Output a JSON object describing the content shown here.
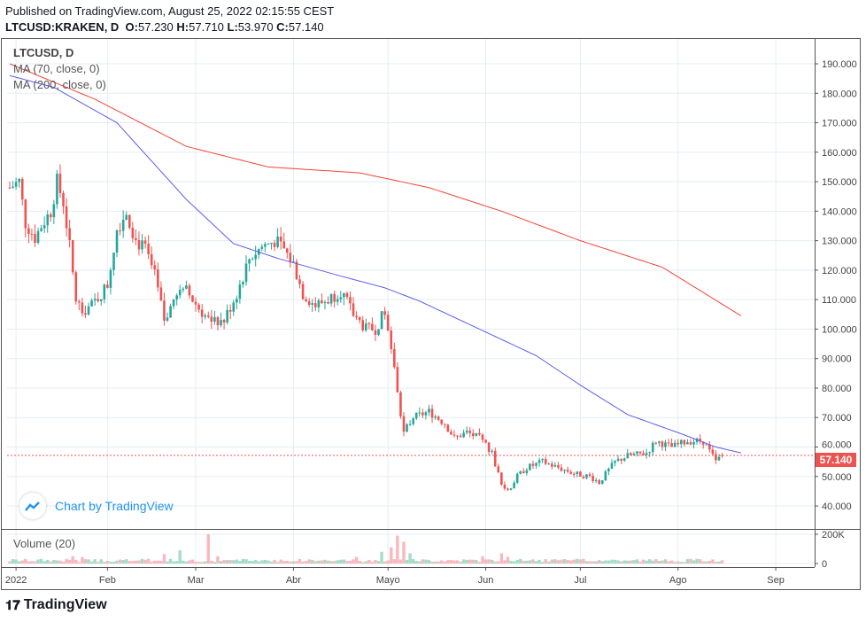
{
  "header": {
    "published": "Published on TradingView.com, August 25, 2022 02:15:55 CEST",
    "symbol": "LTCUSD:KRAKEN, D",
    "o_label": "O:",
    "o": "57.230",
    "h_label": "H:",
    "h": "57.710",
    "l_label": "L:",
    "l": "53.970",
    "c_label": "C:",
    "c": "57.140"
  },
  "legend": {
    "title": "LTCUSD, D",
    "ma1": "MA (70, close, 0)",
    "ma2": "MA (200, close, 0)",
    "volume": "Volume (20)"
  },
  "watermark": "Chart by TradingView",
  "logo": "TradingView",
  "colors": {
    "up": "#26a69a",
    "down": "#ef5350",
    "ma1": "#f44336",
    "ma2": "#5b5bf0",
    "grid": "#e4edf4"
  },
  "chart_data": {
    "type": "candlestick",
    "title": "LTCUSD, D",
    "last_price": "57.140",
    "ylim": [
      30,
      198
    ],
    "y_ticks": [
      "190.000",
      "180.000",
      "170.000",
      "160.000",
      "150.000",
      "140.000",
      "130.000",
      "120.000",
      "110.000",
      "100.000",
      "90.000",
      "80.000",
      "70.000",
      "60.000",
      "50.000",
      "40.000"
    ],
    "x_ticks": [
      {
        "label": "2022",
        "day": 2
      },
      {
        "label": "Feb",
        "day": 31
      },
      {
        "label": "Mar",
        "day": 59
      },
      {
        "label": "Abr",
        "day": 90
      },
      {
        "label": "Mayo",
        "day": 120
      },
      {
        "label": "Jun",
        "day": 151
      },
      {
        "label": "Jul",
        "day": 181
      },
      {
        "label": "Ago",
        "day": 212
      },
      {
        "label": "Sep",
        "day": 243
      }
    ],
    "close_keypoints_day_price": [
      [
        0,
        148
      ],
      [
        3,
        150
      ],
      [
        5,
        136
      ],
      [
        8,
        131
      ],
      [
        10,
        135
      ],
      [
        13,
        140
      ],
      [
        15,
        150
      ],
      [
        17,
        143
      ],
      [
        19,
        128
      ],
      [
        21,
        110
      ],
      [
        23,
        106
      ],
      [
        26,
        108
      ],
      [
        29,
        112
      ],
      [
        31,
        115
      ],
      [
        34,
        134
      ],
      [
        37,
        140
      ],
      [
        40,
        130
      ],
      [
        43,
        127
      ],
      [
        46,
        118
      ],
      [
        49,
        103
      ],
      [
        52,
        110
      ],
      [
        56,
        113
      ],
      [
        60,
        107
      ],
      [
        64,
        102
      ],
      [
        68,
        103
      ],
      [
        72,
        112
      ],
      [
        76,
        124
      ],
      [
        80,
        128
      ],
      [
        84,
        130
      ],
      [
        87,
        127
      ],
      [
        90,
        122
      ],
      [
        93,
        112
      ],
      [
        97,
        108
      ],
      [
        101,
        110
      ],
      [
        105,
        113
      ],
      [
        109,
        105
      ],
      [
        113,
        100
      ],
      [
        116,
        100
      ],
      [
        119,
        106
      ],
      [
        121,
        95
      ],
      [
        123,
        78
      ],
      [
        125,
        65
      ],
      [
        128,
        70
      ],
      [
        133,
        72
      ],
      [
        138,
        68
      ],
      [
        141,
        63
      ],
      [
        145,
        65
      ],
      [
        149,
        63
      ],
      [
        153,
        58
      ],
      [
        156,
        47
      ],
      [
        158,
        45
      ],
      [
        161,
        50
      ],
      [
        164,
        53
      ],
      [
        169,
        55
      ],
      [
        174,
        53
      ],
      [
        179,
        51
      ],
      [
        184,
        50
      ],
      [
        187,
        48
      ],
      [
        192,
        55
      ],
      [
        196,
        57
      ],
      [
        202,
        58
      ],
      [
        205,
        62
      ],
      [
        210,
        60
      ],
      [
        215,
        62
      ],
      [
        220,
        62
      ],
      [
        224,
        55
      ],
      [
        226,
        57.14
      ]
    ],
    "ma1_keypoints_day_price": [
      [
        0,
        190
      ],
      [
        27,
        178
      ],
      [
        56,
        162
      ],
      [
        82,
        155
      ],
      [
        111,
        153
      ],
      [
        133,
        148
      ],
      [
        156,
        140
      ],
      [
        181,
        130
      ],
      [
        207,
        121
      ],
      [
        232,
        104.5
      ]
    ],
    "ma2_keypoints_day_price": [
      [
        0,
        186
      ],
      [
        14,
        182
      ],
      [
        34,
        170
      ],
      [
        56,
        144
      ],
      [
        71,
        129
      ],
      [
        85,
        124
      ],
      [
        105,
        118
      ],
      [
        119,
        114
      ],
      [
        130,
        109.5
      ],
      [
        145,
        102
      ],
      [
        167,
        91
      ],
      [
        181,
        81
      ],
      [
        196,
        71
      ],
      [
        213,
        64.5
      ],
      [
        224,
        60
      ],
      [
        232,
        58
      ]
    ],
    "volume_base": 25000,
    "volume_spikes_day_value": [
      [
        20,
        50000
      ],
      [
        23,
        45000
      ],
      [
        49,
        65000
      ],
      [
        54,
        90000
      ],
      [
        63,
        200000
      ],
      [
        66,
        50000
      ],
      [
        110,
        45000
      ],
      [
        118,
        80000
      ],
      [
        121,
        110000
      ],
      [
        123,
        190000
      ],
      [
        125,
        150000
      ],
      [
        127,
        70000
      ],
      [
        150,
        50000
      ],
      [
        156,
        70000
      ],
      [
        158,
        45000
      ]
    ],
    "volume_ticks": [
      "200K",
      "0"
    ]
  }
}
